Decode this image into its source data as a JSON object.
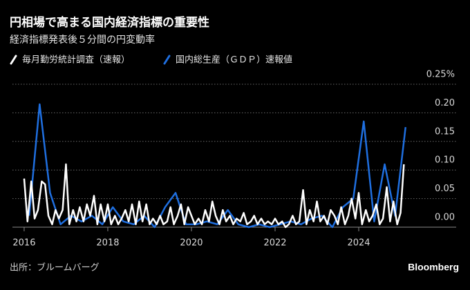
{
  "chart_data": {
    "type": "line",
    "title": "円相場で高まる国内経済指標の重要性",
    "subtitle": "経済指標発表後５分間の円変動率",
    "source": "出所：ブルームバーグ",
    "brand": "Bloomberg",
    "xlim": [
      2015.72,
      2026.33
    ],
    "xticks": [
      2016,
      2018,
      2020,
      2022,
      2024
    ],
    "ylim": [
      0,
      0.25
    ],
    "yticks": [
      {
        "value": 0,
        "label": "0.00"
      },
      0.05,
      {
        "value": 0.1,
        "label": "0.10"
      },
      0.15,
      {
        "value": 0.2,
        "label": "0.20"
      },
      {
        "value": 0.25,
        "label": "0.25%"
      }
    ],
    "grid": true,
    "series": [
      {
        "name": "毎月勤労統計調査（速報）",
        "color": "#ffffff",
        "x": [
          2016,
          2016.08,
          2016.17,
          2016.25,
          2016.33,
          2016.42,
          2016.5,
          2016.58,
          2016.67,
          2016.75,
          2016.83,
          2016.92,
          2017,
          2017.08,
          2017.17,
          2017.25,
          2017.33,
          2017.42,
          2017.5,
          2017.58,
          2017.67,
          2017.75,
          2017.83,
          2017.92,
          2018,
          2018.08,
          2018.17,
          2018.25,
          2018.33,
          2018.42,
          2018.5,
          2018.58,
          2018.67,
          2018.75,
          2018.83,
          2018.92,
          2019,
          2019.08,
          2019.17,
          2019.25,
          2019.33,
          2019.42,
          2019.5,
          2019.58,
          2019.67,
          2019.75,
          2019.83,
          2019.92,
          2020,
          2020.08,
          2020.17,
          2020.25,
          2020.33,
          2020.42,
          2020.5,
          2020.58,
          2020.67,
          2020.75,
          2020.83,
          2020.92,
          2021,
          2021.08,
          2021.17,
          2021.25,
          2021.33,
          2021.42,
          2021.5,
          2021.58,
          2021.67,
          2021.75,
          2021.83,
          2021.92,
          2022,
          2022.08,
          2022.17,
          2022.25,
          2022.33,
          2022.42,
          2022.5,
          2022.58,
          2022.67,
          2022.75,
          2022.83,
          2022.92,
          2023,
          2023.08,
          2023.17,
          2023.25,
          2023.33,
          2023.42,
          2023.5,
          2023.58,
          2023.67,
          2023.75,
          2023.83,
          2023.92,
          2024,
          2024.08,
          2024.17,
          2024.25,
          2024.33,
          2024.42,
          2024.5,
          2024.58,
          2024.67,
          2024.75,
          2024.83,
          2024.92,
          2025,
          2025.08
        ],
        "values": [
          0.085,
          0.01,
          0.08,
          0.015,
          0.03,
          0.08,
          0.075,
          0.02,
          0.005,
          0.03,
          0.015,
          0.03,
          0.11,
          0.005,
          0.03,
          0.01,
          0.035,
          0.01,
          0.04,
          0.02,
          0.055,
          0.005,
          0.04,
          0.01,
          0.04,
          0.005,
          0.02,
          0.005,
          0.015,
          0.03,
          0.01,
          0.04,
          0.005,
          0.045,
          0.01,
          0.04,
          0.005,
          0.015,
          0.005,
          0.02,
          0.005,
          0.01,
          0.035,
          0.005,
          0.02,
          0.04,
          0.005,
          0.035,
          0.02,
          0.005,
          0.015,
          0.005,
          0.03,
          0.01,
          0.045,
          0.02,
          0.005,
          0.03,
          0.01,
          0.02,
          0.005,
          0.015,
          0.01,
          0.025,
          0.005,
          0.01,
          0.02,
          0.005,
          0.015,
          0.005,
          0.01,
          0.005,
          0.015,
          0.005,
          0.01,
          0,
          0.005,
          0.02,
          0.005,
          0.01,
          0.065,
          0.005,
          0.03,
          0.01,
          0.045,
          0.01,
          0.02,
          0.005,
          0.03,
          0.02,
          0.005,
          0.035,
          0.005,
          0.02,
          0.05,
          0.015,
          0.06,
          0.005,
          0.03,
          0.01,
          0.02,
          0.04,
          0.005,
          0.015,
          0.07,
          0.01,
          0.045,
          0.005,
          0.025,
          0.11
        ]
      },
      {
        "name": "国内総生産（ＧＤＰ）速報値",
        "color": "#1f6fe0",
        "x": [
          2016.12,
          2016.37,
          2016.62,
          2016.87,
          2017.12,
          2017.37,
          2017.62,
          2017.87,
          2018.12,
          2018.37,
          2018.62,
          2018.87,
          2019.12,
          2019.37,
          2019.62,
          2019.87,
          2020.12,
          2020.37,
          2020.62,
          2020.87,
          2021.12,
          2021.37,
          2021.62,
          2021.87,
          2022.12,
          2022.37,
          2022.62,
          2022.87,
          2023.12,
          2023.37,
          2023.62,
          2023.87,
          2024.12,
          2024.37,
          2024.62,
          2024.87,
          2025.12
        ],
        "values": [
          0.02,
          0.215,
          0.06,
          0.005,
          0.02,
          0.01,
          0.02,
          0.005,
          0.035,
          0.01,
          0.005,
          0.02,
          0,
          0.035,
          0.06,
          0.005,
          0.005,
          0.01,
          0.005,
          0.03,
          0.005,
          0,
          0.005,
          0,
          0.005,
          0.01,
          0.005,
          0.015,
          0.02,
          0,
          0.035,
          0.05,
          0.185,
          0.01,
          0.11,
          0.02,
          0.175
        ]
      }
    ]
  }
}
